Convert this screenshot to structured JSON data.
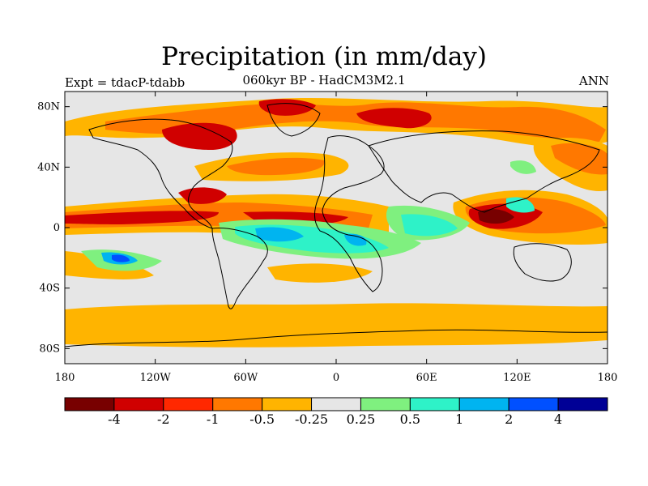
{
  "title": "Precipitation (in mm/day)",
  "subtitle": "060kyr BP - HadCM3M2.1",
  "left_label": "Expt = tdacP-tdabb",
  "right_label": "ANN",
  "colors": {
    "ocean_background": "#e6e6e6",
    "coastline": "#000000"
  },
  "map": {
    "projection": "cylindrical equidistant",
    "lon_range": [
      -180,
      180
    ],
    "lat_range": [
      -90,
      90
    ],
    "x_ticks": [
      {
        "value": -180,
        "label": "180"
      },
      {
        "value": -120,
        "label": "120W"
      },
      {
        "value": -60,
        "label": "60W"
      },
      {
        "value": 0,
        "label": "0"
      },
      {
        "value": 60,
        "label": "60E"
      },
      {
        "value": 120,
        "label": "120E"
      },
      {
        "value": 180,
        "label": "180"
      }
    ],
    "y_ticks": [
      {
        "value": 80,
        "label": "80N"
      },
      {
        "value": 40,
        "label": "40N"
      },
      {
        "value": 0,
        "label": "0"
      },
      {
        "value": -40,
        "label": "40S"
      },
      {
        "value": -80,
        "label": "80S"
      }
    ]
  },
  "colorbar": {
    "colors": [
      "#780000",
      "#d00000",
      "#ff2800",
      "#ff7800",
      "#ffb400",
      "#e6e6e6",
      "#7ff07f",
      "#2ef2c8",
      "#00b4f0",
      "#0050ff",
      "#000096"
    ],
    "labels": [
      "-4",
      "-2",
      "-1",
      "-0.5",
      "-0.25",
      "0.25",
      "0.5",
      "1",
      "2",
      "4"
    ]
  }
}
